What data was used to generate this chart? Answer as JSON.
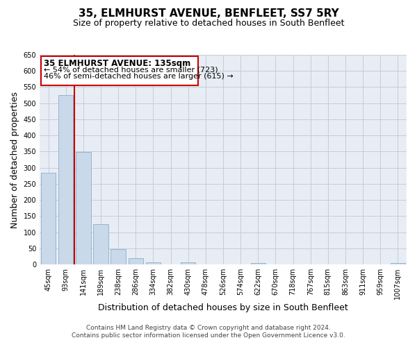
{
  "title": "35, ELMHURST AVENUE, BENFLEET, SS7 5RY",
  "subtitle": "Size of property relative to detached houses in South Benfleet",
  "xlabel": "Distribution of detached houses by size in South Benfleet",
  "ylabel": "Number of detached properties",
  "bar_categories": [
    "45sqm",
    "93sqm",
    "141sqm",
    "189sqm",
    "238sqm",
    "286sqm",
    "334sqm",
    "382sqm",
    "430sqm",
    "478sqm",
    "526sqm",
    "574sqm",
    "622sqm",
    "670sqm",
    "718sqm",
    "767sqm",
    "815sqm",
    "863sqm",
    "911sqm",
    "959sqm",
    "1007sqm"
  ],
  "bar_values": [
    285,
    525,
    348,
    125,
    48,
    20,
    7,
    0,
    7,
    0,
    0,
    0,
    5,
    0,
    0,
    0,
    0,
    0,
    0,
    0,
    5
  ],
  "bar_color": "#c9d9ea",
  "bar_edge_color": "#8aafc8",
  "ylim": [
    0,
    650
  ],
  "yticks": [
    0,
    50,
    100,
    150,
    200,
    250,
    300,
    350,
    400,
    450,
    500,
    550,
    600,
    650
  ],
  "property_line_color": "#cc0000",
  "annotation_title": "35 ELMHURST AVENUE: 135sqm",
  "annotation_line1": "← 54% of detached houses are smaller (723)",
  "annotation_line2": "46% of semi-detached houses are larger (615) →",
  "footer_line1": "Contains HM Land Registry data © Crown copyright and database right 2024.",
  "footer_line2": "Contains public sector information licensed under the Open Government Licence v3.0.",
  "background_color": "#ffffff",
  "plot_bg_color": "#e8edf5",
  "grid_color": "#c5cdd8",
  "title_fontsize": 11,
  "subtitle_fontsize": 9,
  "axis_label_fontsize": 9,
  "tick_fontsize": 7,
  "annotation_title_fontsize": 8.5,
  "annotation_fontsize": 8,
  "footer_fontsize": 6.5
}
